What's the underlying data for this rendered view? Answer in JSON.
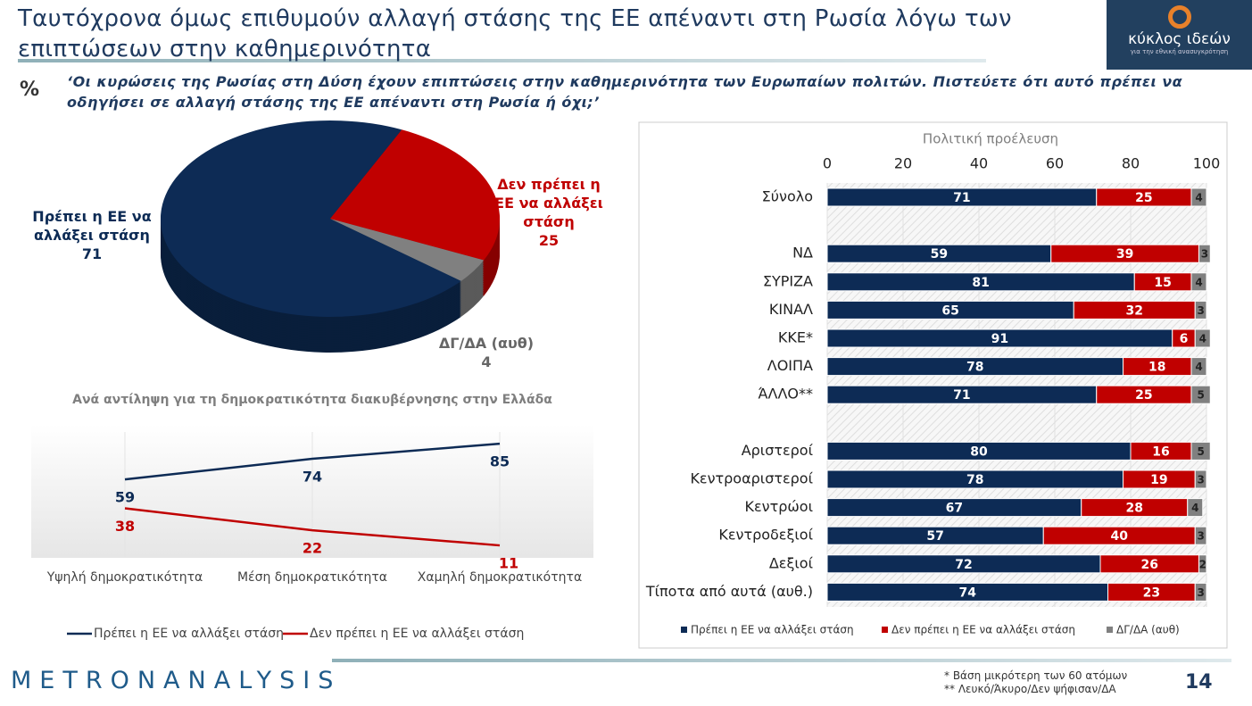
{
  "header": {
    "title": "Ταυτόχρονα όμως επιθυμούν αλλαγή στάσης της ΕΕ απέναντι στη Ρωσία λόγω των επιπτώσεων στην καθημερινότητα",
    "unit": "%",
    "question": "‘Οι κυρώσεις της Ρωσίας στη Δύση έχουν επιπτώσεις στην καθημερινότητα των Ευρωπαίων πολιτών. Πιστεύετε ότι αυτό πρέπει να οδηγήσει σε αλλαγή στάσης της ΕΕ απέναντι στη Ρωσία ή όχι;’"
  },
  "logo": {
    "name": "κύκλος ιδεών",
    "tagline": "για την εθνική ανασυγκρότηση"
  },
  "chart_data": [
    {
      "type": "pie",
      "categories": [
        "Πρέπει η ΕΕ να αλλάξει στάση",
        "Δεν πρέπει η ΕΕ να αλλάξει στάση",
        "ΔΓ/ΔΑ (αυθ)"
      ],
      "values": [
        71,
        25,
        4
      ],
      "colors": [
        "#0d2b55",
        "#c00000",
        "#808080"
      ]
    },
    {
      "type": "line",
      "title": "Ανά αντίληψη για τη δημοκρατικότητα διακυβέρνησης στην Ελλάδα",
      "categories": [
        "Υψηλή δημοκρατικότητα",
        "Μέση δημοκρατικότητα",
        "Χαμηλή δημοκρατικότητα"
      ],
      "ylim": [
        0,
        100
      ],
      "series": [
        {
          "name": "Πρέπει η ΕΕ να αλλάξει στάση",
          "color": "#0d2b55",
          "values": [
            59,
            74,
            85
          ]
        },
        {
          "name": "Δεν πρέπει η ΕΕ να αλλάξει στάση",
          "color": "#c00000",
          "values": [
            38,
            22,
            11
          ]
        }
      ]
    },
    {
      "type": "bar",
      "title": "Πολιτική προέλευση",
      "orientation": "horizontal",
      "stacked": true,
      "xlim": [
        0,
        100
      ],
      "xticks": [
        0,
        20,
        40,
        60,
        80,
        100
      ],
      "categories": [
        "Σύνολο",
        null,
        "ΝΔ",
        "ΣΥΡΙΖΑ",
        "ΚΙΝΑΛ",
        "ΚΚΕ*",
        "ΛΟΙΠΑ",
        "ΆΛΛΟ**",
        null,
        "Αριστεροί",
        "Κεντροαριστεροί",
        "Κεντρώοι",
        "Κεντροδεξιοί",
        "Δεξιοί",
        "Τίποτα από αυτά (αυθ.)"
      ],
      "series": [
        {
          "name": "Πρέπει η ΕΕ να αλλάξει στάση",
          "color": "#0d2b55",
          "values": [
            71,
            null,
            59,
            81,
            65,
            91,
            78,
            71,
            null,
            80,
            78,
            67,
            57,
            72,
            74
          ]
        },
        {
          "name": "Δεν πρέπει η ΕΕ να αλλάξει στάση",
          "color": "#c00000",
          "values": [
            25,
            null,
            39,
            15,
            32,
            6,
            18,
            25,
            null,
            16,
            19,
            28,
            40,
            26,
            23
          ]
        },
        {
          "name": "ΔΓ/ΔΑ (αυθ)",
          "color": "#808080",
          "values": [
            4,
            null,
            3,
            4,
            3,
            4,
            4,
            5,
            null,
            5,
            3,
            4,
            3,
            2,
            3
          ]
        }
      ]
    }
  ],
  "footer": {
    "brand": "METRONANALYSIS",
    "notes": [
      "*  Βάση μικρότερη των 60 ατόμων",
      "** Λευκό/Άκυρο/Δεν ψήφισαν/ΔΑ"
    ],
    "page": "14"
  }
}
